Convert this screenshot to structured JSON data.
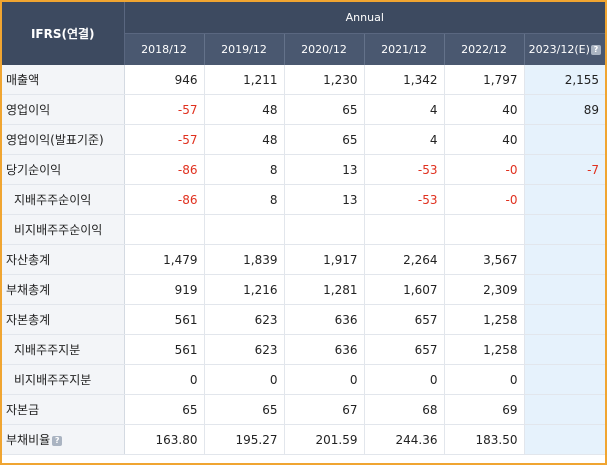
{
  "header": {
    "ifrs_label": "IFRS(연결)",
    "annual_label": "Annual",
    "years": [
      "2018/12",
      "2019/12",
      "2020/12",
      "2021/12",
      "2022/12",
      "2023/12(E)"
    ],
    "estimate_help_icon": "question-icon"
  },
  "rows": [
    {
      "label": "매출액",
      "sub": false,
      "help": false,
      "values": [
        "946",
        "1,211",
        "1,230",
        "1,342",
        "1,797",
        "2,155"
      ]
    },
    {
      "label": "영업이익",
      "sub": false,
      "help": false,
      "values": [
        "-57",
        "48",
        "65",
        "4",
        "40",
        "89"
      ]
    },
    {
      "label": "영업이익(발표기준)",
      "sub": false,
      "help": false,
      "values": [
        "-57",
        "48",
        "65",
        "4",
        "40",
        ""
      ]
    },
    {
      "label": "당기순이익",
      "sub": false,
      "help": false,
      "values": [
        "-86",
        "8",
        "13",
        "-53",
        "-0",
        "-7"
      ]
    },
    {
      "label": "지배주주순이익",
      "sub": true,
      "help": false,
      "values": [
        "-86",
        "8",
        "13",
        "-53",
        "-0",
        ""
      ]
    },
    {
      "label": "비지배주주순이익",
      "sub": true,
      "help": false,
      "values": [
        "",
        "",
        "",
        "",
        "",
        ""
      ]
    },
    {
      "label": "자산총계",
      "sub": false,
      "help": false,
      "values": [
        "1,479",
        "1,839",
        "1,917",
        "2,264",
        "3,567",
        ""
      ]
    },
    {
      "label": "부채총계",
      "sub": false,
      "help": false,
      "values": [
        "919",
        "1,216",
        "1,281",
        "1,607",
        "2,309",
        ""
      ]
    },
    {
      "label": "자본총계",
      "sub": false,
      "help": false,
      "values": [
        "561",
        "623",
        "636",
        "657",
        "1,258",
        ""
      ]
    },
    {
      "label": "지배주주지분",
      "sub": true,
      "help": false,
      "values": [
        "561",
        "623",
        "636",
        "657",
        "1,258",
        ""
      ]
    },
    {
      "label": "비지배주주지분",
      "sub": true,
      "help": false,
      "values": [
        "0",
        "0",
        "0",
        "0",
        "0",
        ""
      ]
    },
    {
      "label": "자본금",
      "sub": false,
      "help": false,
      "values": [
        "65",
        "65",
        "67",
        "68",
        "69",
        ""
      ]
    },
    {
      "label": "부채비율",
      "sub": false,
      "help": true,
      "values": [
        "163.80",
        "195.27",
        "201.59",
        "244.36",
        "183.50",
        ""
      ]
    }
  ],
  "colors": {
    "header_bg": "#3d4a60",
    "border_accent": "#f0a531",
    "negative": "#e0301e",
    "estimate_bg": "#e6f2fc",
    "label_bg": "#f3f5f8"
  }
}
